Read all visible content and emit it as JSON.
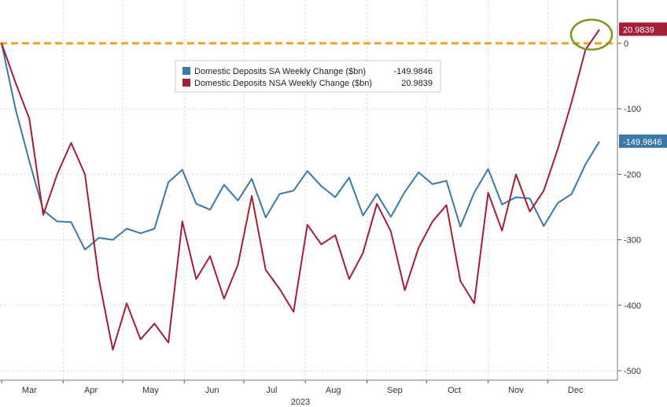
{
  "colors": {
    "sa": "#3a78a8",
    "nsa": "#a51e36",
    "zero_line": "#f0a020",
    "highlight_circle": "#7a9a1e",
    "grid": "#d4d4d4"
  },
  "chart_data": {
    "type": "line",
    "title": "",
    "xlabel": "2023",
    "ylabel": "",
    "ylim": [
      -510,
      40
    ],
    "yticks": [
      0,
      -100,
      -200,
      -300,
      -400,
      -500
    ],
    "ytick_labels": [
      "0",
      "-100",
      "-200",
      "-300",
      "-400",
      "-500"
    ],
    "month_labels": [
      "Mar",
      "Apr",
      "May",
      "Jun",
      "Jul",
      "Aug",
      "Sep",
      "Oct",
      "Nov",
      "Dec"
    ],
    "year_label": "2023",
    "grid": true,
    "zero_line": true,
    "legend": {
      "placement": "top-center",
      "entries": [
        {
          "series": "sa",
          "label": "Domestic Deposits SA Weekly Change ($bn)",
          "value": "-149.9846"
        },
        {
          "series": "nsa",
          "label": "Domestic Deposits NSA Weekly Change ($bn)",
          "value": "20.9839"
        }
      ]
    },
    "last_value_labels": {
      "sa": "-149.9846",
      "nsa": "20.9839"
    },
    "x": [
      "2023-03-01",
      "2023-03-08",
      "2023-03-15",
      "2023-03-22",
      "2023-03-29",
      "2023-04-05",
      "2023-04-12",
      "2023-04-19",
      "2023-04-26",
      "2023-05-03",
      "2023-05-10",
      "2023-05-17",
      "2023-05-24",
      "2023-05-31",
      "2023-06-07",
      "2023-06-14",
      "2023-06-21",
      "2023-06-28",
      "2023-07-05",
      "2023-07-12",
      "2023-07-19",
      "2023-07-26",
      "2023-08-02",
      "2023-08-09",
      "2023-08-16",
      "2023-08-23",
      "2023-08-30",
      "2023-09-06",
      "2023-09-13",
      "2023-09-20",
      "2023-09-27",
      "2023-10-04",
      "2023-10-11",
      "2023-10-18",
      "2023-10-25",
      "2023-11-01",
      "2023-11-08",
      "2023-11-15",
      "2023-11-22",
      "2023-11-29",
      "2023-12-06",
      "2023-12-13",
      "2023-12-20",
      "2023-12-27"
    ],
    "series": [
      {
        "key": "sa",
        "name": "Domestic Deposits SA Weekly Change ($bn)",
        "values": [
          0,
          -100,
          -180,
          -255,
          -272,
          -273,
          -315,
          -297,
          -300,
          -283,
          -290,
          -283,
          -212,
          -193,
          -245,
          -254,
          -216,
          -240,
          -207,
          -266,
          -230,
          -225,
          -195,
          -218,
          -235,
          -205,
          -263,
          -230,
          -265,
          -227,
          -197,
          -215,
          -210,
          -280,
          -228,
          -192,
          -246,
          -235,
          -237,
          -279,
          -244,
          -230,
          -185,
          -150
        ]
      },
      {
        "key": "nsa",
        "name": "Domestic Deposits NSA Weekly Change ($bn)",
        "values": [
          0,
          -60,
          -115,
          -262,
          -200,
          -152,
          -200,
          -360,
          -468,
          -397,
          -452,
          -428,
          -457,
          -272,
          -360,
          -325,
          -390,
          -338,
          -233,
          -346,
          -375,
          -410,
          -277,
          -307,
          -293,
          -360,
          -320,
          -245,
          -287,
          -377,
          -312,
          -272,
          -247,
          -363,
          -397,
          -228,
          -286,
          -200,
          -257,
          -225,
          -162,
          -90,
          -10,
          21
        ]
      }
    ]
  }
}
